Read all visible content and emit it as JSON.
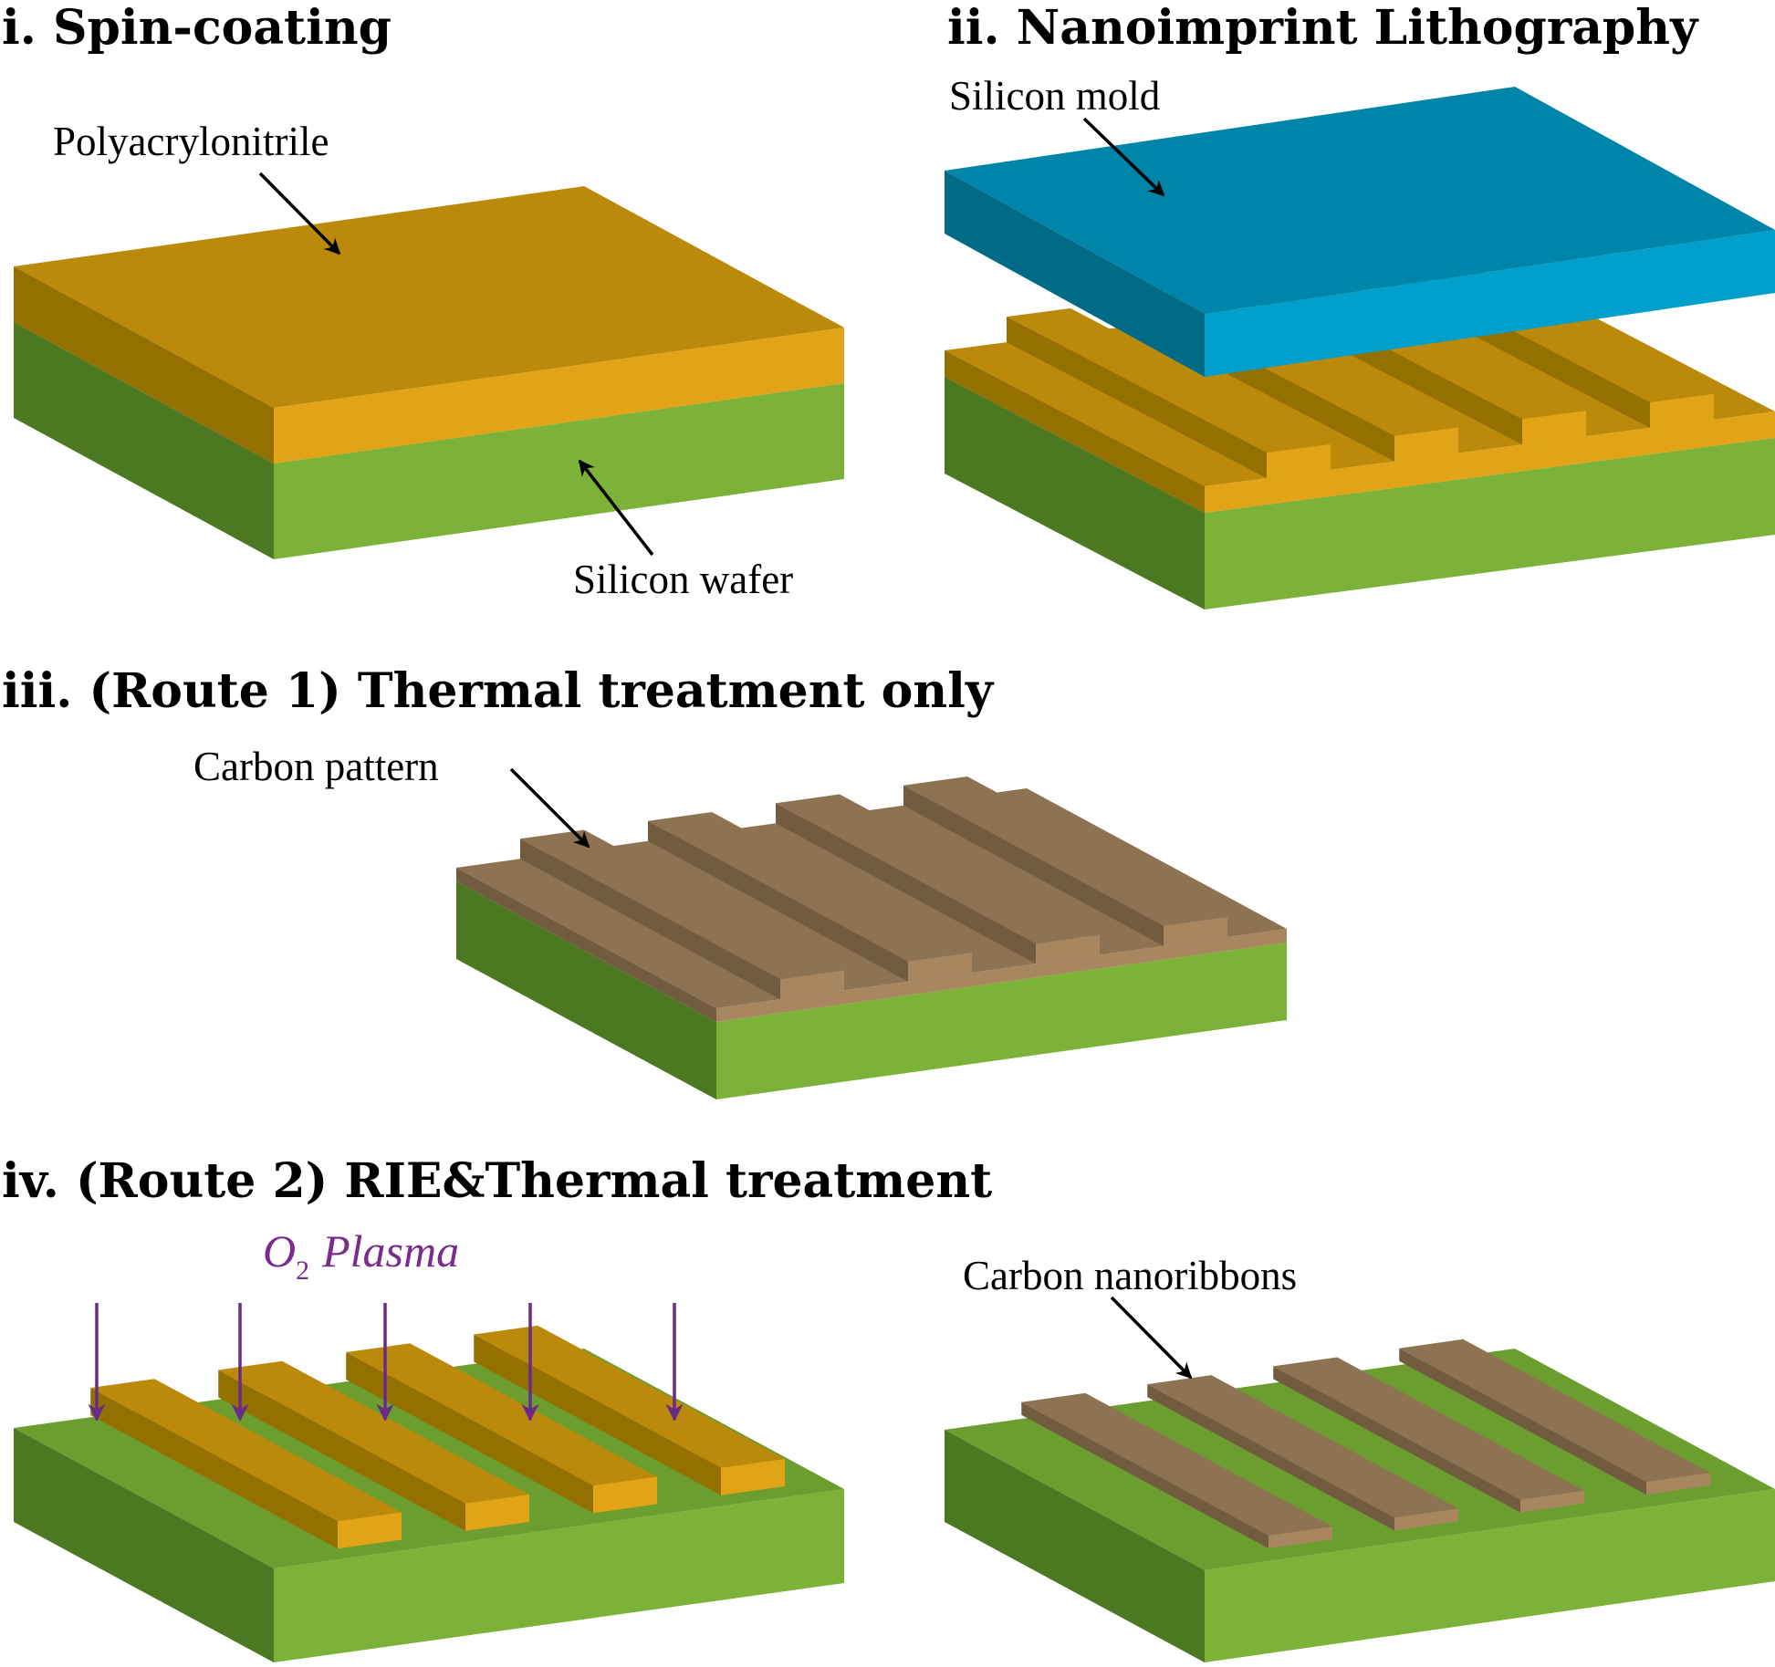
{
  "titles": {
    "step_i": "i. Spin-coating",
    "step_ii": "ii. Nanoimprint Lithography",
    "step_iii": "iii. (Route 1) Thermal treatment only",
    "step_iv": "iv. (Route 2) RIE&Thermal treatment"
  },
  "labels": {
    "polyacrylonitrile": "Polyacrylonitrile",
    "silicon_wafer": "Silicon wafer",
    "silicon_mold": "Silicon mold",
    "carbon_pattern": "Carbon pattern",
    "carbon_nanoribbons": "Carbon nanoribbons"
  },
  "plasma": {
    "prefix": "O",
    "subscript": "2",
    "suffix": "Plasma"
  },
  "colors": {
    "silicon_top": "#6c9e2f",
    "silicon_front": "#7cb238",
    "silicon_side": "#4c7822",
    "pan_top": "#bb8a0b",
    "pan_front": "#e0a416",
    "pan_side": "#937000",
    "mold_top": "#0085aa",
    "mold_front": "#009fcc",
    "mold_side": "#006a87",
    "carbon_top": "#8e7352",
    "carbon_front": "#a8865f",
    "carbon_side": "#725c40",
    "plasma": "#6a2a88"
  }
}
